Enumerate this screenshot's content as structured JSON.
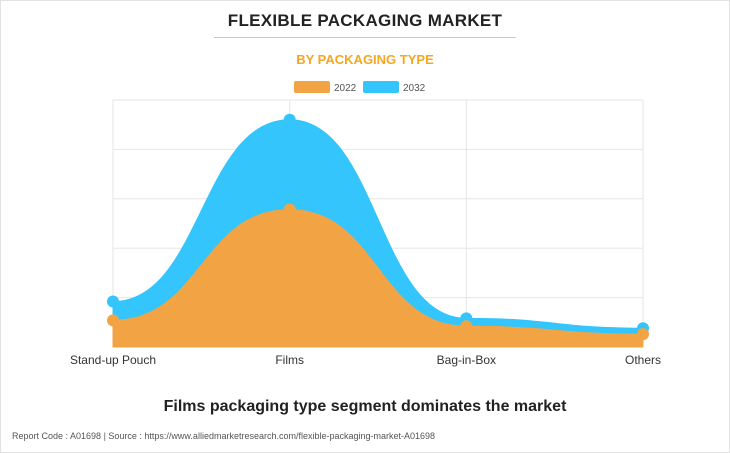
{
  "header": {
    "title": "FLEXIBLE PACKAGING MARKET",
    "subtitle": "BY PACKAGING TYPE"
  },
  "caption": "Films packaging type segment dominates the market",
  "footer": {
    "text": "Report Code : A01698  |  Source : https://www.alliedmarketresearch.com/flexible-packaging-market-A01698"
  },
  "colors": {
    "series_2022": "#f2a444",
    "series_2032": "#33c5fc",
    "subtitle": "#f5a623",
    "grid": "#e6e6e6"
  },
  "chart_data": {
    "type": "area",
    "categories": [
      "Stand-up Pouch",
      "Films",
      "Bag-in-Box",
      "Others"
    ],
    "series": [
      {
        "name": "2022",
        "values": [
          27,
          139,
          21,
          13
        ]
      },
      {
        "name": "2032",
        "values": [
          46,
          230,
          29,
          19
        ]
      }
    ],
    "ylim": [
      0,
      250
    ],
    "y_gridlines": 6,
    "grid": true,
    "legend": "top-center",
    "smooth": true
  }
}
